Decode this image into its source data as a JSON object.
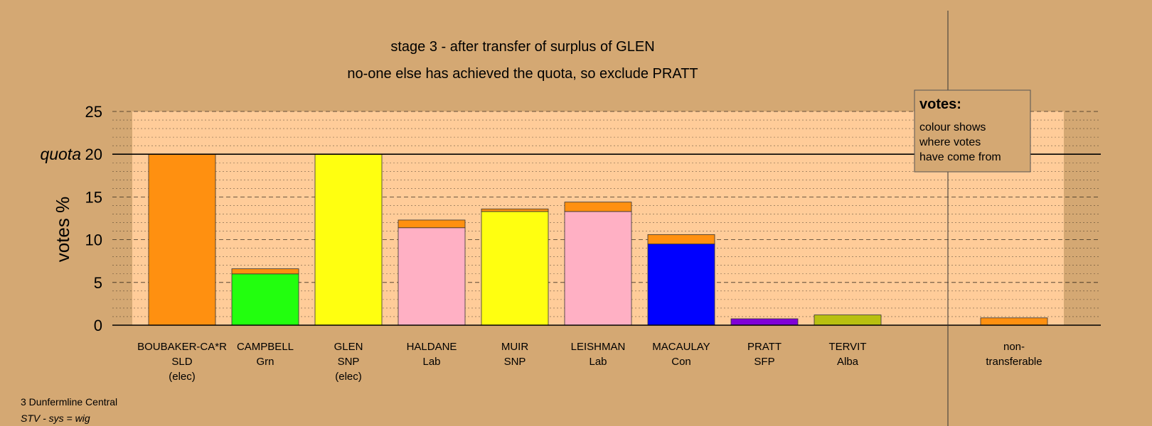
{
  "chart_data": {
    "type": "bar",
    "title": "stage 3 - after transfer of surplus of GLEN",
    "subtitle": "no-one else has achieved the quota, so exclude PRATT",
    "ylabel": "votes %",
    "ylim": [
      0,
      25
    ],
    "yticks": [
      0,
      5,
      10,
      15,
      20,
      25
    ],
    "quota": 20,
    "quota_label": "quota",
    "grid": true,
    "stacked": true,
    "colors": {
      "SLD": "#FF9010",
      "Grn": "#22FF0E",
      "SNP": "#FFFF10",
      "Lab": "#FFB0C4",
      "Con": "#0000FF",
      "SFP": "#8000D8",
      "Alba": "#B8C010",
      "plot_bg": "#FFCC99",
      "page_bg": "#D4A873"
    },
    "categories": [
      {
        "name": "BOUBAKER-CA*R",
        "party": "SLD",
        "status": "(elec)",
        "segments": [
          {
            "source": "SLD",
            "value": 20.0
          }
        ]
      },
      {
        "name": "CAMPBELL",
        "party": "Grn",
        "status": "",
        "segments": [
          {
            "source": "Grn",
            "value": 6.0
          },
          {
            "source": "SLD",
            "value": 0.6
          }
        ]
      },
      {
        "name": "GLEN",
        "party": "SNP",
        "status": "(elec)",
        "segments": [
          {
            "source": "SNP",
            "value": 20.0
          }
        ]
      },
      {
        "name": "HALDANE",
        "party": "Lab",
        "status": "",
        "segments": [
          {
            "source": "Lab",
            "value": 11.4
          },
          {
            "source": "SLD",
            "value": 0.9
          }
        ]
      },
      {
        "name": "MUIR",
        "party": "SNP",
        "status": "",
        "segments": [
          {
            "source": "SNP",
            "value": 13.3
          },
          {
            "source": "SLD",
            "value": 0.3
          }
        ]
      },
      {
        "name": "LEISHMAN",
        "party": "Lab",
        "status": "",
        "segments": [
          {
            "source": "Lab",
            "value": 13.3
          },
          {
            "source": "SLD",
            "value": 1.1
          }
        ]
      },
      {
        "name": "MACAULAY",
        "party": "Con",
        "status": "",
        "segments": [
          {
            "source": "Con",
            "value": 9.5
          },
          {
            "source": "SLD",
            "value": 1.1
          }
        ]
      },
      {
        "name": "PRATT",
        "party": "SFP",
        "status": "",
        "segments": [
          {
            "source": "SFP",
            "value": 0.75
          }
        ]
      },
      {
        "name": "TERVIT",
        "party": "Alba",
        "status": "",
        "segments": [
          {
            "source": "Alba",
            "value": 1.2
          }
        ]
      }
    ],
    "nontransferable": {
      "label_line1": "non-",
      "label_line2": "transferable",
      "segments": [
        {
          "source": "SLD",
          "value": 0.85
        }
      ]
    },
    "legend": {
      "title": "votes:",
      "lines": [
        "colour shows",
        "where votes",
        "have come from"
      ],
      "placement": "top-right"
    }
  },
  "footer": {
    "line1": "3 Dunfermline Central",
    "line2": "STV - sys = wig"
  }
}
